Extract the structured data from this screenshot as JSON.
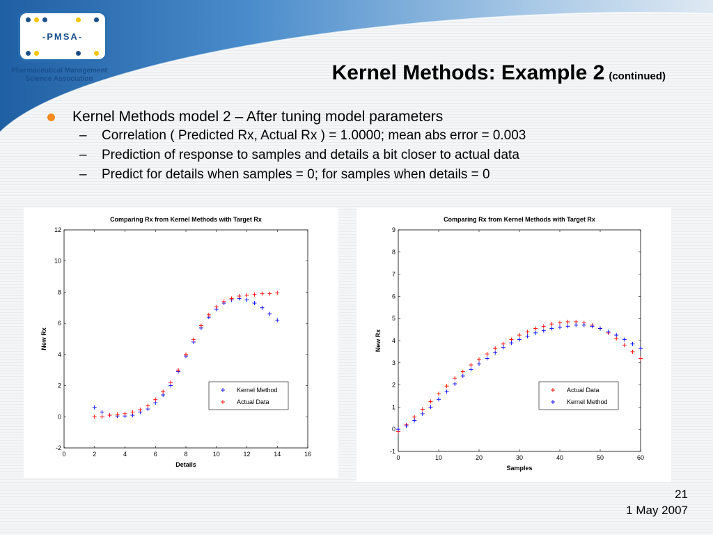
{
  "logo": {
    "text": "-PMSA-",
    "caption_line1": "Pharmaceutical Management",
    "caption_line2": "Science Association"
  },
  "slide": {
    "title": "Kernel Methods: Example 2",
    "title_suffix": "(continued)",
    "bullet": "Kernel Methods model 2 – After tuning model parameters",
    "subbullets": [
      "Correlation ( Predicted Rx, Actual Rx ) = 1.0000; mean abs error = 0.003",
      "Prediction of response to samples and details a bit closer to actual data",
      "Predict for details when samples = 0; for samples when details = 0"
    ],
    "page_number": "21",
    "date": "1 May 2007"
  },
  "colors": {
    "accent": "#f58a1f",
    "brand": "#2a6fb0",
    "series_blue": "#0000ff",
    "series_red": "#ff0000"
  },
  "chart_data": [
    {
      "type": "scatter",
      "title": "Comparing Rx from Kernel Methods with Target Rx",
      "xlabel": "Details",
      "ylabel": "New Rx",
      "xlim": [
        0,
        16
      ],
      "ylim": [
        -2,
        12
      ],
      "xticks": [
        0,
        2,
        4,
        6,
        8,
        10,
        12,
        14,
        16
      ],
      "yticks": [
        -2,
        0,
        2,
        4,
        6,
        8,
        10,
        12
      ],
      "legend_position": "bottom-right",
      "series": [
        {
          "name": "Kernel Method",
          "color": "#0000ff",
          "x": [
            2,
            2.5,
            3,
            3.5,
            4,
            4.5,
            5,
            5.5,
            6,
            6.5,
            7,
            7.5,
            8,
            8.5,
            9,
            9.5,
            10,
            10.5,
            11,
            11.5,
            12,
            12.5,
            13,
            13.5,
            14
          ],
          "y": [
            0.6,
            0.3,
            0.1,
            0.05,
            0.05,
            0.1,
            0.3,
            0.5,
            0.9,
            1.4,
            2.0,
            2.9,
            3.9,
            4.8,
            5.7,
            6.4,
            6.9,
            7.3,
            7.5,
            7.6,
            7.5,
            7.3,
            7.0,
            6.6,
            6.2
          ]
        },
        {
          "name": "Actual Data",
          "color": "#ff0000",
          "x": [
            2,
            2.5,
            3,
            3.5,
            4,
            4.5,
            5,
            5.5,
            6,
            6.5,
            7,
            7.5,
            8,
            8.5,
            9,
            9.5,
            10,
            10.5,
            11,
            11.5,
            12,
            12.5,
            13,
            13.5,
            14
          ],
          "y": [
            0.0,
            0.0,
            0.1,
            0.15,
            0.2,
            0.3,
            0.45,
            0.7,
            1.1,
            1.6,
            2.2,
            3.0,
            4.0,
            4.95,
            5.85,
            6.55,
            7.05,
            7.4,
            7.6,
            7.75,
            7.8,
            7.85,
            7.9,
            7.9,
            7.95
          ]
        }
      ]
    },
    {
      "type": "scatter",
      "title": "Comparing Rx from Kernel Methods with Target Rx",
      "xlabel": "Samples",
      "ylabel": "New Rx",
      "xlim": [
        0,
        60
      ],
      "ylim": [
        -1,
        9
      ],
      "xticks": [
        0,
        10,
        20,
        30,
        40,
        50,
        60
      ],
      "yticks": [
        -1,
        0,
        1,
        2,
        3,
        4,
        5,
        6,
        7,
        8,
        9
      ],
      "legend_position": "bottom-right",
      "series": [
        {
          "name": "Actual Data",
          "color": "#ff0000",
          "x": [
            0,
            2,
            4,
            6,
            8,
            10,
            12,
            14,
            16,
            18,
            20,
            22,
            24,
            26,
            28,
            30,
            32,
            34,
            36,
            38,
            40,
            42,
            44,
            46,
            48,
            50,
            52,
            54,
            56,
            58,
            60
          ],
          "y": [
            -0.1,
            0.2,
            0.55,
            0.9,
            1.25,
            1.6,
            1.95,
            2.3,
            2.6,
            2.9,
            3.15,
            3.4,
            3.65,
            3.85,
            4.05,
            4.25,
            4.4,
            4.55,
            4.65,
            4.75,
            4.8,
            4.85,
            4.85,
            4.8,
            4.7,
            4.55,
            4.35,
            4.1,
            3.8,
            3.5,
            3.2
          ]
        },
        {
          "name": "Kernel Method",
          "color": "#0000ff",
          "x": [
            0,
            2,
            4,
            6,
            8,
            10,
            12,
            14,
            16,
            18,
            20,
            22,
            24,
            26,
            28,
            30,
            32,
            34,
            36,
            38,
            40,
            42,
            44,
            46,
            48,
            50,
            52,
            54,
            56,
            58,
            60
          ],
          "y": [
            0.0,
            0.15,
            0.4,
            0.7,
            1.0,
            1.35,
            1.7,
            2.05,
            2.4,
            2.7,
            2.95,
            3.2,
            3.45,
            3.7,
            3.9,
            4.05,
            4.2,
            4.35,
            4.45,
            4.55,
            4.6,
            4.65,
            4.7,
            4.7,
            4.65,
            4.55,
            4.4,
            4.25,
            4.05,
            3.85,
            3.65
          ]
        }
      ]
    }
  ]
}
